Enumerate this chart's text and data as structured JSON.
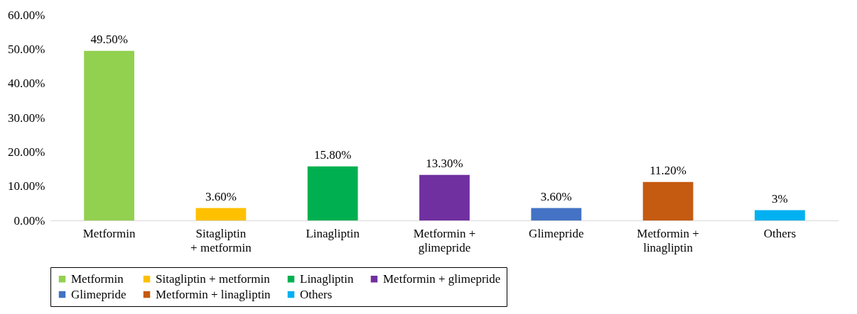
{
  "chart_data": {
    "type": "bar",
    "categories": [
      "Metformin",
      "Sitagliptin + metformin",
      "Linagliptin",
      "Metformin + glimepride",
      "Glimepride",
      "Metformin + linagliptin",
      "Others"
    ],
    "series": [
      {
        "name": "Metformin",
        "color": "#92d050",
        "values": [
          49.5,
          null,
          null,
          null,
          null,
          null,
          null
        ],
        "value_labels": [
          "49.50%",
          null,
          null,
          null,
          null,
          null,
          null
        ]
      },
      {
        "name": "Sitagliptin + metformin",
        "color": "#ffc000",
        "values": [
          null,
          3.6,
          null,
          null,
          null,
          null,
          null
        ],
        "value_labels": [
          null,
          "3.60%",
          null,
          null,
          null,
          null,
          null
        ]
      },
      {
        "name": "Linagliptin",
        "color": "#00b050",
        "values": [
          null,
          null,
          15.8,
          null,
          null,
          null,
          null
        ],
        "value_labels": [
          null,
          null,
          "15.80%",
          null,
          null,
          null,
          null
        ]
      },
      {
        "name": "Metformin + glimepride",
        "color": "#7030a0",
        "values": [
          null,
          null,
          null,
          13.3,
          null,
          null,
          null
        ],
        "value_labels": [
          null,
          null,
          null,
          "13.30%",
          null,
          null,
          null
        ]
      },
      {
        "name": "Glimepride",
        "color": "#4472c4",
        "values": [
          null,
          null,
          null,
          null,
          3.6,
          null,
          null
        ],
        "value_labels": [
          null,
          null,
          null,
          null,
          "3.60%",
          null,
          null
        ]
      },
      {
        "name": "Metformin + linagliptin",
        "color": "#c55a11",
        "values": [
          null,
          null,
          null,
          null,
          null,
          11.2,
          null
        ],
        "value_labels": [
          null,
          null,
          null,
          null,
          null,
          "11.20%",
          null
        ]
      },
      {
        "name": "Others",
        "color": "#00b0f0",
        "values": [
          null,
          null,
          null,
          null,
          null,
          null,
          3
        ],
        "value_labels": [
          null,
          null,
          null,
          null,
          null,
          null,
          "3%"
        ]
      }
    ],
    "ylim": [
      0,
      60
    ],
    "yticks": [
      {
        "value": 0,
        "label": "0.00%"
      },
      {
        "value": 10,
        "label": "10.00%"
      },
      {
        "value": 20,
        "label": "20.00%"
      },
      {
        "value": 30,
        "label": "30.00%"
      },
      {
        "value": 40,
        "label": "40.00%"
      },
      {
        "value": 50,
        "label": "50.00%"
      },
      {
        "value": 60,
        "label": "60.00%"
      }
    ],
    "legend": "bottom"
  }
}
